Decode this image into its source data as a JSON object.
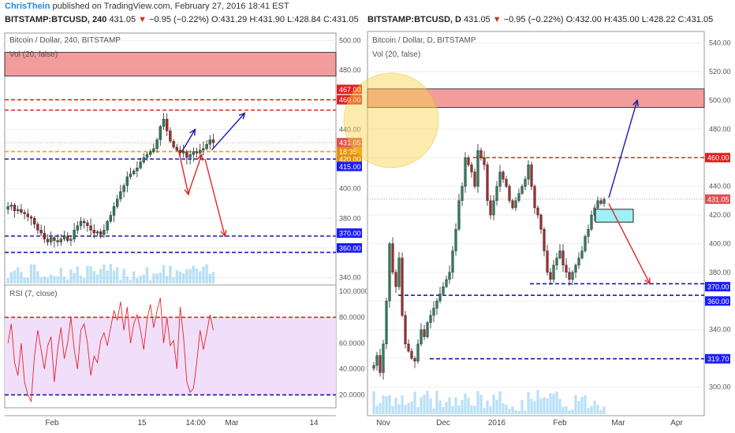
{
  "header": {
    "author": "ChrisThein",
    "published": "published on TradingView.com, February 27, 2016 18:41 EST"
  },
  "left_quote": {
    "symbol": "BITSTAMP:BTCUSD, 240",
    "last": "431.05",
    "arrow": "▼",
    "change": "−0.95 (−0.22%)",
    "open": "O:431.29",
    "high": "H:431.90",
    "low": "L:428.84",
    "close": "C:431.05"
  },
  "right_quote": {
    "symbol": "BITSTAMP:BTCUSD, D",
    "last": "431.05",
    "arrow": "▼",
    "change": "−0.95 (−0.22%)",
    "open": "O:432.00",
    "high": "H:435.00",
    "low": "L:428.22",
    "close": "C:431.05"
  },
  "colors": {
    "up": "#2e7d5b",
    "down": "#a52a2a",
    "blue_dash": "#1a1aa8",
    "red_dash": "#e52525",
    "orange_dash": "#f39c12",
    "rsi_line": "#e52525",
    "rsi_band": "#f1defa",
    "zone": "#f28b8b",
    "zone_cyan": "#9ff0f6",
    "volume": "#7fc7ee",
    "circle": "#f7d44a",
    "price_marker": "#e05050",
    "blue_label": "#1a1aff",
    "red_label": "#e02020",
    "orange_label": "#e8900a"
  },
  "chart_data": [
    {
      "type": "candlestick",
      "title": "Bitcoin / Dollar, 240, BITSTAMP",
      "indicator": "Vol (20, false)",
      "ylim": [
        335,
        505
      ],
      "y_ticks": [
        340,
        360,
        380,
        400,
        420,
        440,
        460,
        480,
        500
      ],
      "x_ticks": [
        "Feb",
        "15",
        "14:00",
        "Mar",
        "14"
      ],
      "price_labels": [
        {
          "value": 467.0,
          "text": "467.00",
          "kind": "red"
        },
        {
          "value": 460.0,
          "text": "460.00",
          "kind": "red"
        },
        {
          "value": 431.05,
          "text": "431.05",
          "kind": "last"
        },
        {
          "value": 425.0,
          "text": "18:35",
          "kind": "orange"
        },
        {
          "value": 420.0,
          "text": "420.00",
          "kind": "orange"
        },
        {
          "value": 415.0,
          "text": "415.00",
          "kind": "blue"
        },
        {
          "value": 370.0,
          "text": "370.00",
          "kind": "blue"
        },
        {
          "value": 360.0,
          "text": "360.00",
          "kind": "blue"
        }
      ],
      "levels": {
        "red_dashed": [
          460,
          453
        ],
        "orange_dashed": 425,
        "blue_dashed": [
          420,
          368,
          357
        ]
      },
      "zone": [
        476,
        492
      ],
      "closes": [
        388,
        389,
        385,
        386,
        384,
        383,
        381,
        380,
        376,
        372,
        370,
        366,
        364,
        367,
        365,
        364,
        366,
        368,
        365,
        366,
        372,
        375,
        378,
        377,
        375,
        372,
        370,
        371,
        369,
        372,
        378,
        382,
        388,
        393,
        398,
        402,
        408,
        410,
        412,
        414,
        418,
        421,
        423,
        425,
        427,
        433,
        442,
        447,
        439,
        432,
        428,
        426,
        424,
        425,
        421,
        423,
        425,
        424,
        426,
        427,
        430,
        433,
        431
      ],
      "annotations": [
        {
          "shape": "arrow",
          "color": "blue",
          "from": [
            53,
            425
          ],
          "to": [
            57,
            440
          ]
        },
        {
          "shape": "arrow",
          "color": "blue",
          "from": [
            62,
            426
          ],
          "to": [
            72,
            451
          ]
        },
        {
          "shape": "arrow",
          "color": "red",
          "from": [
            52,
            426
          ],
          "to": [
            55,
            396
          ]
        },
        {
          "shape": "arrow",
          "color": "red",
          "from": [
            55,
            397
          ],
          "to": [
            59,
            423
          ]
        },
        {
          "shape": "arrow",
          "color": "red",
          "from": [
            60,
            420
          ],
          "to": [
            66,
            368
          ]
        }
      ]
    },
    {
      "type": "line",
      "title": "RSI (7, close)",
      "ylim": [
        10,
        105
      ],
      "y_ticks": [
        "20.0000",
        "40.0000",
        "60.0000",
        "80.0000",
        "100.0000"
      ],
      "levels": [
        80,
        20
      ],
      "values": [
        60,
        75,
        45,
        35,
        60,
        30,
        20,
        15,
        50,
        70,
        55,
        40,
        58,
        65,
        30,
        55,
        72,
        48,
        60,
        80,
        55,
        40,
        70,
        75,
        60,
        35,
        50,
        45,
        62,
        68,
        58,
        72,
        85,
        78,
        92,
        70,
        88,
        60,
        75,
        82,
        70,
        55,
        78,
        90,
        72,
        85,
        95,
        60,
        80,
        58,
        62,
        40,
        88,
        65,
        30,
        22,
        25,
        45,
        70,
        55,
        68,
        82,
        70
      ],
      "x_ticks": [
        "Feb",
        "15",
        "14:00",
        "Mar",
        "14"
      ]
    },
    {
      "type": "candlestick",
      "title": "Bitcoin / Dollar, D, BITSTAMP",
      "indicator": "Vol (20, false)",
      "ylim": [
        280,
        548
      ],
      "y_ticks": [
        300,
        320,
        340,
        360,
        380,
        400,
        420,
        440,
        460,
        480,
        500,
        520,
        540
      ],
      "x_ticks": [
        "Nov",
        "Dec",
        "2016",
        "Feb",
        "Mar",
        "Apr"
      ],
      "price_labels": [
        {
          "value": 460.0,
          "text": "460.00",
          "kind": "red"
        },
        {
          "value": 431.05,
          "text": "431.05",
          "kind": "last"
        },
        {
          "value": 370.0,
          "text": "370.00",
          "kind": "blue"
        },
        {
          "value": 360.0,
          "text": "360.00",
          "kind": "blue"
        },
        {
          "value": 319.7,
          "text": "319.70",
          "kind": "blue"
        }
      ],
      "levels": {
        "red_dashed": 460,
        "blue_dashed": [
          372,
          364,
          319.7
        ]
      },
      "zone": [
        495,
        508
      ],
      "zone_cyan": [
        415,
        424
      ],
      "closes": [
        315,
        322,
        310,
        330,
        360,
        400,
        380,
        370,
        390,
        350,
        330,
        325,
        320,
        318,
        330,
        340,
        335,
        345,
        350,
        355,
        360,
        365,
        370,
        375,
        380,
        395,
        410,
        430,
        440,
        460,
        455,
        450,
        440,
        465,
        460,
        455,
        430,
        420,
        430,
        440,
        450,
        445,
        440,
        430,
        425,
        430,
        435,
        440,
        445,
        455,
        440,
        425,
        420,
        410,
        395,
        380,
        375,
        385,
        390,
        395,
        385,
        380,
        375,
        380,
        385,
        390,
        395,
        405,
        410,
        420,
        425,
        430,
        428,
        431
      ],
      "annotations": [
        {
          "shape": "circle",
          "center": [
            1,
            486
          ],
          "radius_days": 10
        },
        {
          "shape": "arrow",
          "color": "blue",
          "from": [
            50,
            432
          ],
          "to": [
            54,
            500
          ]
        },
        {
          "shape": "arrow",
          "color": "red",
          "from": [
            50,
            428
          ],
          "to": [
            58,
            372
          ]
        }
      ]
    }
  ]
}
